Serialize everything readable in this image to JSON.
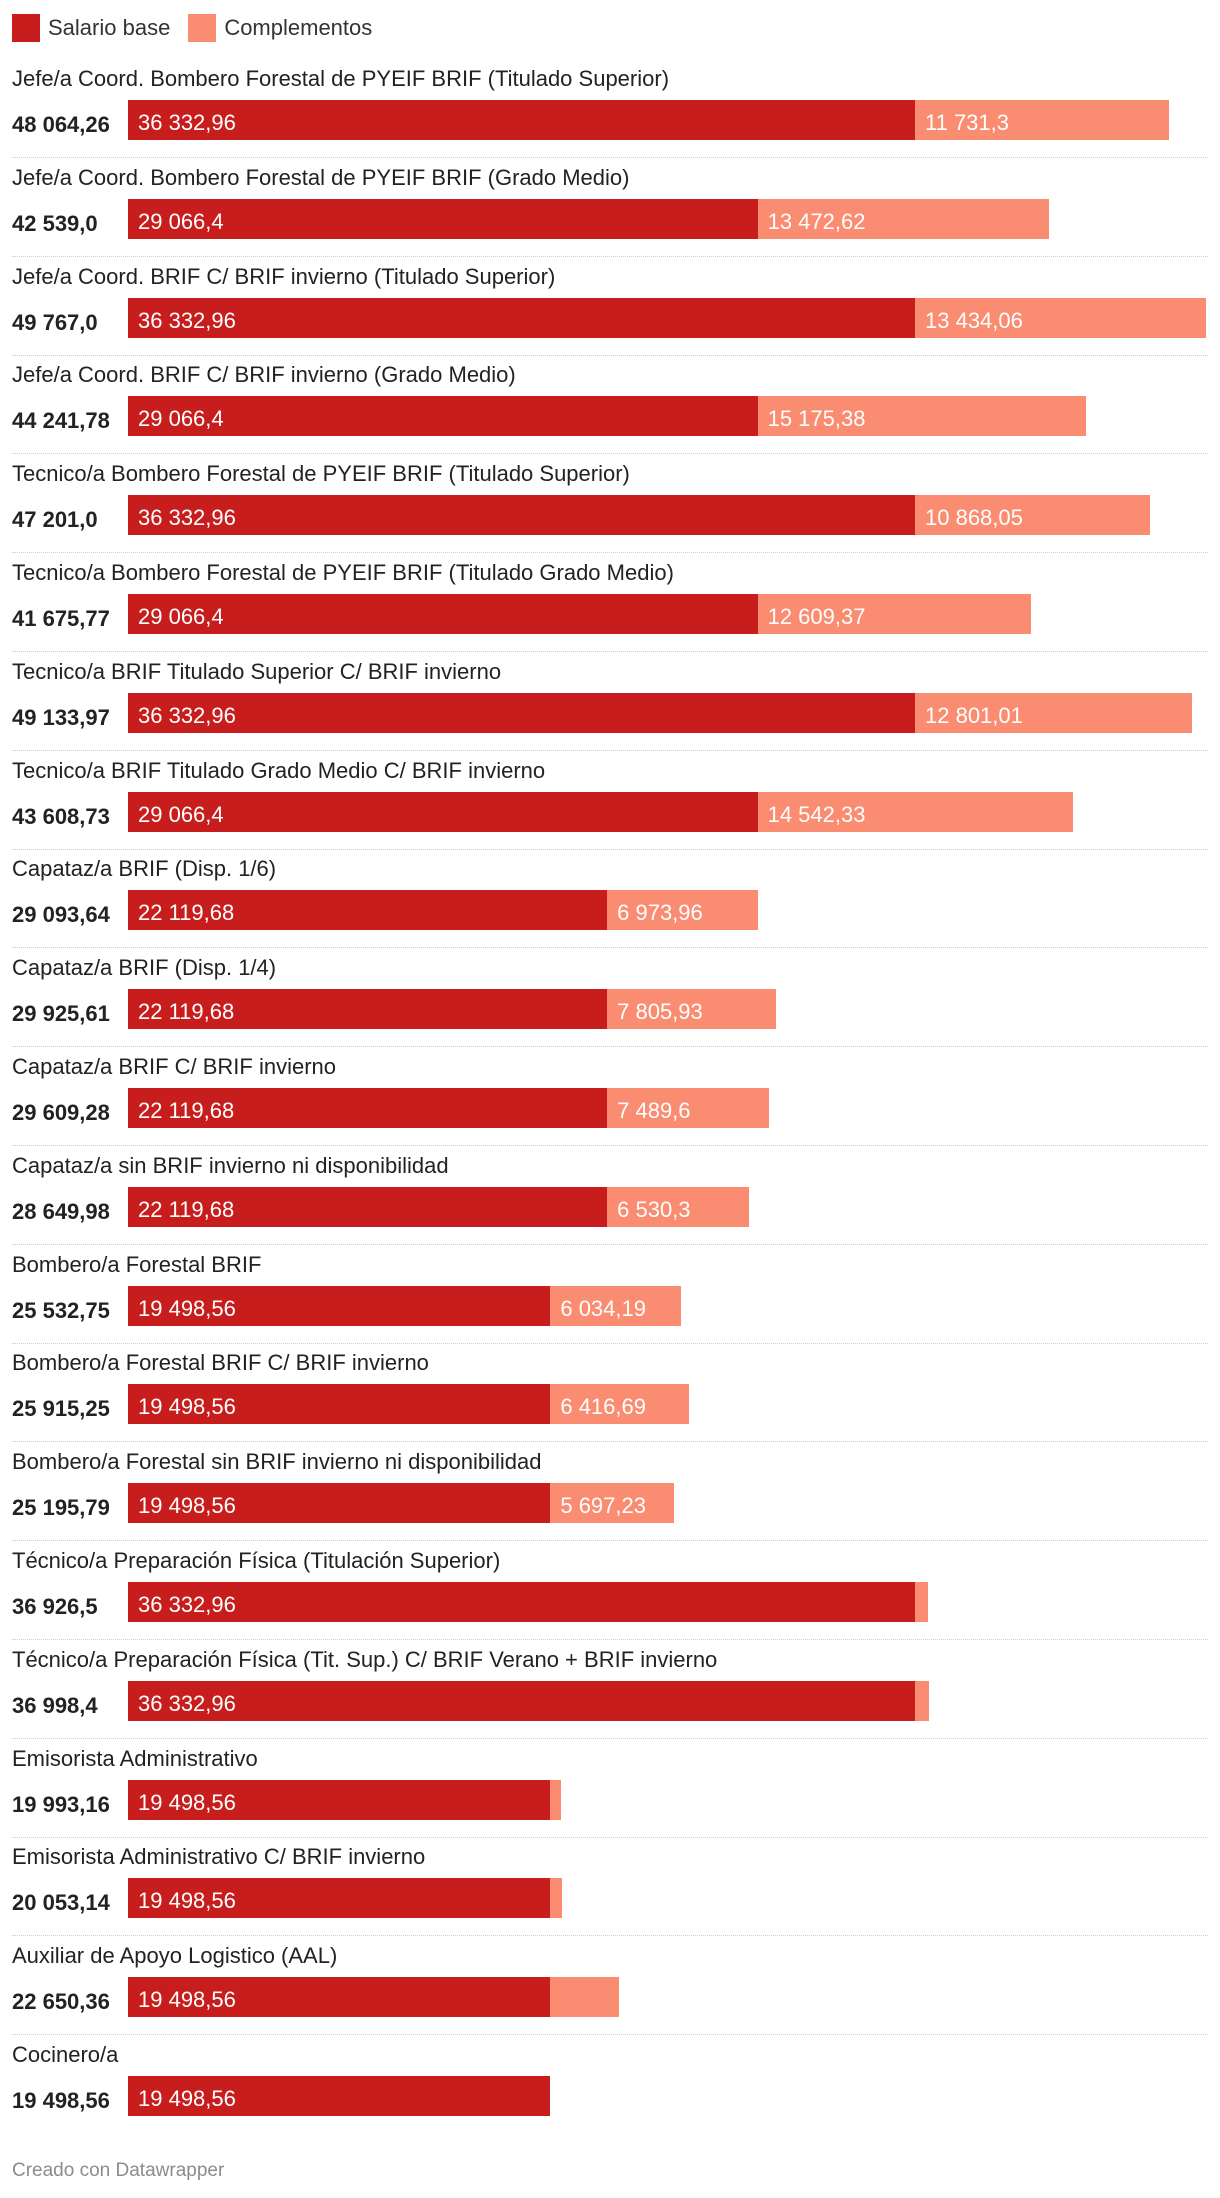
{
  "legend": [
    {
      "label": "Salario base",
      "color": "#c71e1d"
    },
    {
      "label": "Complementos",
      "color": "#fa8c72"
    }
  ],
  "chart_data": {
    "type": "bar",
    "orientation": "horizontal",
    "stacked": true,
    "categories": [
      "Jefe/a Coord. Bombero Forestal de PYEIF BRIF (Titulado Superior)",
      "Jefe/a Coord. Bombero Forestal de PYEIF BRIF (Grado Medio)",
      "Jefe/a Coord. BRIF C/ BRIF invierno (Titulado Superior)",
      "Jefe/a Coord. BRIF C/ BRIF invierno (Grado Medio)",
      "Tecnico/a Bombero Forestal de PYEIF BRIF (Titulado Superior)",
      "Tecnico/a Bombero Forestal de PYEIF BRIF (Titulado Grado Medio)",
      "Tecnico/a BRIF Titulado Superior C/ BRIF invierno",
      "Tecnico/a BRIF Titulado Grado Medio C/ BRIF invierno",
      "Capataz/a BRIF (Disp. 1/6)",
      "Capataz/a BRIF (Disp. 1/4)",
      "Capataz/a BRIF C/ BRIF invierno",
      "Capataz/a sin BRIF invierno ni disponibilidad",
      "Bombero/a Forestal BRIF",
      "Bombero/a Forestal BRIF C/ BRIF invierno",
      "Bombero/a Forestal sin BRIF invierno ni disponibilidad",
      "Técnico/a Preparación Física (Titulación Superior)",
      "Técnico/a Preparación Física (Tit. Sup.) C/ BRIF Verano + BRIF invierno",
      "Emisorista Administrativo",
      "Emisorista Administrativo C/ BRIF invierno",
      "Auxiliar de Apoyo Logistico (AAL)",
      "Cocinero/a"
    ],
    "totals": [
      "48 064,26",
      "42 539,0",
      "49 767,0",
      "44 241,78",
      "47 201,0",
      "41 675,77",
      "49 133,97",
      "43 608,73",
      "29 093,64",
      "29 925,61",
      "29 609,28",
      "28 649,98",
      "25 532,75",
      "25 915,25",
      "25 195,79",
      "36 926,5",
      "36 998,4",
      "19 993,16",
      "20 053,14",
      "22 650,36",
      "19 498,56"
    ],
    "series": [
      {
        "name": "Salario base",
        "color": "#c71e1d",
        "values": [
          36332.96,
          29066.4,
          36332.96,
          29066.4,
          36332.96,
          29066.4,
          36332.96,
          29066.4,
          22119.68,
          22119.68,
          22119.68,
          22119.68,
          19498.56,
          19498.56,
          19498.56,
          36332.96,
          36332.96,
          19498.56,
          19498.56,
          19498.56,
          19498.56
        ],
        "labels": [
          "36 332,96",
          "29 066,4",
          "36 332,96",
          "29 066,4",
          "36 332,96",
          "29 066,4",
          "36 332,96",
          "29 066,4",
          "22 119,68",
          "22 119,68",
          "22 119,68",
          "22 119,68",
          "19 498,56",
          "19 498,56",
          "19 498,56",
          "36 332,96",
          "36 332,96",
          "19 498,56",
          "19 498,56",
          "19 498,56",
          "19 498,56"
        ]
      },
      {
        "name": "Complementos",
        "color": "#fa8c72",
        "values": [
          11731.3,
          13472.62,
          13434.06,
          15175.38,
          10868.05,
          12609.37,
          12801.01,
          14542.33,
          6973.96,
          7805.93,
          7489.6,
          6530.3,
          6034.19,
          6416.69,
          5697.23,
          593.54,
          665.44,
          494.6,
          554.58,
          3151.8,
          0
        ],
        "labels": [
          "11 731,3",
          "13 472,62",
          "13 434,06",
          "15 175,38",
          "10 868,05",
          "12 609,37",
          "12 801,01",
          "14 542,33",
          "6 973,96",
          "7 805,93",
          "7 489,6",
          "6 530,3",
          "6 034,19",
          "6 416,69",
          "5 697,23",
          "",
          "",
          "",
          "",
          "",
          ""
        ]
      }
    ],
    "xlim": [
      0,
      49767
    ],
    "grid": false,
    "legend_position": "top-left"
  },
  "footer": "Creado con Datawrapper"
}
